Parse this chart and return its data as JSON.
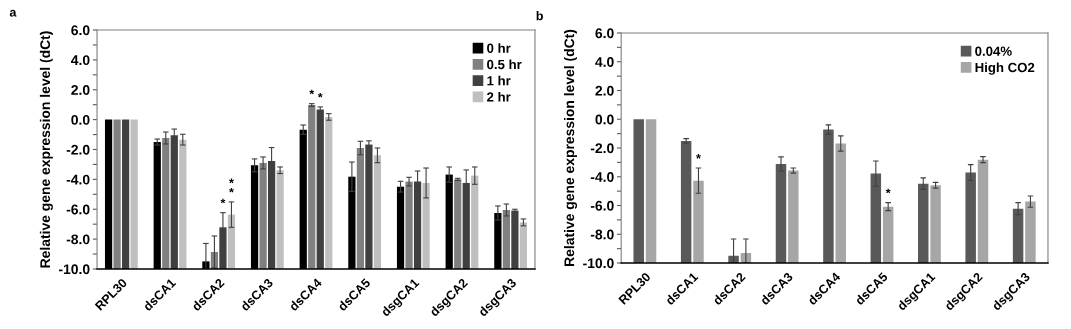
{
  "chart_data": [
    {
      "type": "bar",
      "title": "a",
      "ylabel": "Relative gene expression level (dCt)",
      "categories": [
        "RPL30",
        "dsCA1",
        "dsCA2",
        "dsCA3",
        "dsCA4",
        "dsCA5",
        "dsgCA1",
        "dsgCA2",
        "dsgCA3"
      ],
      "series": [
        {
          "name": "0 hr",
          "color": "#000000",
          "base": [
            -10,
            -10,
            -10,
            -10,
            -10,
            -10,
            -10,
            -10,
            -10
          ],
          "values": [
            10,
            8.5,
            0.51,
            6.94,
            9.33,
            6.18,
            5.51,
            6.32,
            3.75
          ],
          "errors": [
            null,
            0.2,
            [
              -10,
              -8.29
            ],
            0.43,
            0.31,
            0.98,
            0.36,
            0.51,
            0.47
          ]
        },
        {
          "name": "0.5 hr",
          "color": "#808080",
          "base": [
            -10,
            -10,
            -10,
            -10,
            -10,
            -10,
            -10,
            -10,
            -10
          ],
          "values": [
            10,
            8.77,
            1.14,
            7.1,
            10.98,
            8.1,
            5.85,
            6.0,
            3.95
          ],
          "errors": [
            null,
            0.4,
            1.07,
            0.4,
            0.09,
            0.45,
            0.29,
            0.07,
            0.4
          ],
          "value_labels": [
            null,
            null,
            null,
            null,
            "*",
            null,
            null,
            null,
            null
          ]
        },
        {
          "name": "1 hr",
          "color": "#404040",
          "base": [
            -10,
            -10,
            -10,
            -10,
            -10,
            -10,
            -10,
            -10,
            -10
          ],
          "values": [
            10,
            8.95,
            2.79,
            7.23,
            10.67,
            8.33,
            5.85,
            5.76,
            3.91
          ],
          "errors": [
            null,
            0.42,
            0.98,
            0.9,
            0.18,
            0.25,
            0.71,
            0.87,
            0.09
          ],
          "value_labels": [
            null,
            null,
            "*",
            null,
            "*",
            null,
            null,
            null,
            null
          ]
        },
        {
          "name": "2 hr",
          "color": "#bfbfbf",
          "base": [
            -10,
            -10,
            -10,
            -10,
            -10,
            -10,
            -10,
            -10,
            -10
          ],
          "values": [
            10,
            8.66,
            3.64,
            6.61,
            10.18,
            7.61,
            5.76,
            6.25,
            3.12
          ],
          "errors": [
            null,
            0.36,
            0.85,
            0.22,
            0.22,
            0.49,
            1.0,
            0.58,
            0.23
          ],
          "value_labels": [
            null,
            null,
            "*\n*",
            null,
            null,
            null,
            null,
            null,
            null
          ]
        }
      ],
      "ylim": [
        -10,
        6
      ],
      "yticks": [
        {
          "value": -10,
          "label": "-10.0"
        },
        {
          "value": -9,
          "label": null
        },
        {
          "value": -8,
          "label": "-8.0"
        },
        {
          "value": -7,
          "label": null
        },
        {
          "value": -6,
          "label": "-6.0"
        },
        {
          "value": -5,
          "label": null
        },
        {
          "value": -4,
          "label": "-4.0"
        },
        {
          "value": -3,
          "label": null
        },
        {
          "value": -2,
          "label": "-2.0"
        },
        {
          "value": -1,
          "label": null
        },
        {
          "value": 0,
          "label": "0.0"
        },
        {
          "value": 1,
          "label": null
        },
        {
          "value": 2,
          "label": "2.0"
        },
        {
          "value": 3,
          "label": null
        },
        {
          "value": 4,
          "label": "4.0"
        },
        {
          "value": 5,
          "label": null
        },
        {
          "value": 6,
          "label": "6.0"
        }
      ],
      "legend": "top right"
    },
    {
      "type": "bar",
      "title": "b",
      "ylabel": "Relative gene expression level (dCt)",
      "categories": [
        "RPL30",
        "dsCA1",
        "dsCA2",
        "dsCA3",
        "dsCA4",
        "dsCA5",
        "dsgCA1",
        "dsgCA2",
        "dsgCA3"
      ],
      "series": [
        {
          "name": "0.04%",
          "color": "#595959",
          "base": [
            -10,
            -10,
            -10,
            -10,
            -10,
            -10,
            -10,
            -10,
            -10
          ],
          "values": [
            10,
            8.49,
            0.51,
            6.89,
            9.28,
            6.22,
            5.52,
            6.29,
            3.78
          ],
          "errors": [
            null,
            0.16,
            [
              -10,
              -8.33
            ],
            0.49,
            0.33,
            0.88,
            0.4,
            0.55,
            0.42
          ]
        },
        {
          "name": "High CO2",
          "color": "#a6a6a6",
          "base": [
            -10,
            -10,
            -10,
            -10,
            -10,
            -10,
            -10,
            -10,
            -10
          ],
          "values": [
            10,
            5.73,
            0.7,
            6.43,
            8.31,
            3.92,
            5.41,
            7.19,
            4.27
          ],
          "errors": [
            null,
            0.88,
            [
              -10,
              -8.33
            ],
            0.18,
            0.53,
            0.28,
            0.2,
            0.21,
            0.39
          ],
          "value_labels": [
            null,
            "*",
            null,
            null,
            null,
            "*",
            null,
            null,
            null
          ]
        }
      ],
      "ylim": [
        -10,
        6
      ],
      "yticks": [
        {
          "value": -10,
          "label": "-10.0"
        },
        {
          "value": -9,
          "label": null
        },
        {
          "value": -8,
          "label": "-8.0"
        },
        {
          "value": -7,
          "label": null
        },
        {
          "value": -6,
          "label": "-6.0"
        },
        {
          "value": -5,
          "label": null
        },
        {
          "value": -4,
          "label": "-4.0"
        },
        {
          "value": -3,
          "label": null
        },
        {
          "value": -2,
          "label": "-2.0"
        },
        {
          "value": -1,
          "label": null
        },
        {
          "value": 0,
          "label": "0.0"
        },
        {
          "value": 1,
          "label": null
        },
        {
          "value": 2,
          "label": "2.0"
        },
        {
          "value": 3,
          "label": null
        },
        {
          "value": 4,
          "label": "4.0"
        },
        {
          "value": 5,
          "label": null
        },
        {
          "value": 6,
          "label": "6.0"
        }
      ],
      "legend": "top right"
    }
  ]
}
